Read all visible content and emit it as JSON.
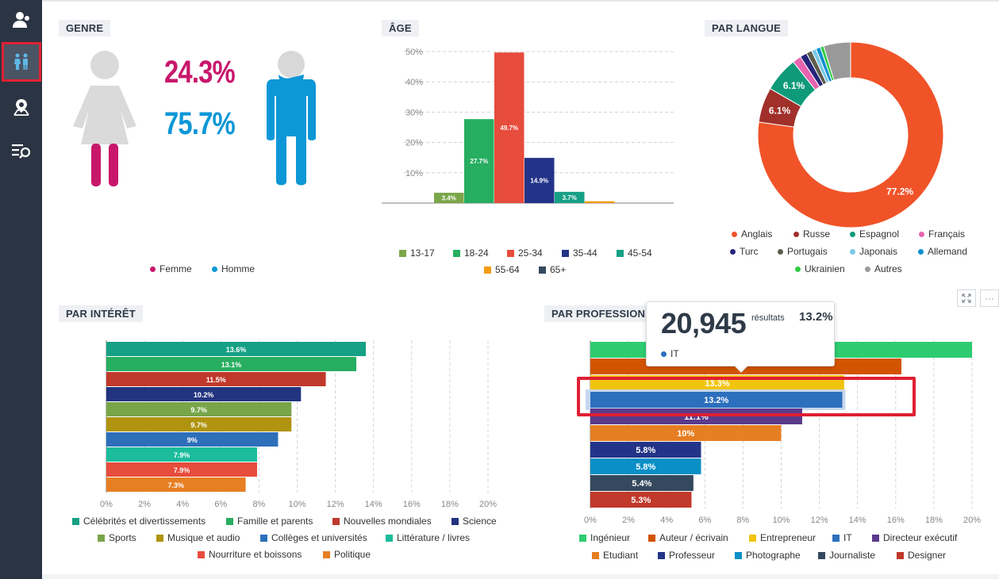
{
  "sidebar": {
    "items": [
      {
        "name": "audience-icon",
        "active": false
      },
      {
        "name": "gender-icon",
        "active": true
      },
      {
        "name": "location-icon",
        "active": false
      },
      {
        "name": "search-list-icon",
        "active": false
      }
    ]
  },
  "genre": {
    "title": "GENRE",
    "female_pct": "24.3%",
    "male_pct": "75.7%",
    "legend": [
      {
        "label": "Femme",
        "color": "#c8176b"
      },
      {
        "label": "Homme",
        "color": "#0d97d6"
      }
    ]
  },
  "age": {
    "title": "ÂGE",
    "legend": [
      {
        "label": "13-17",
        "color": "#7ba64a"
      },
      {
        "label": "18-24",
        "color": "#27ae60"
      },
      {
        "label": "25-34",
        "color": "#e74c3c"
      },
      {
        "label": "35-44",
        "color": "#233488"
      },
      {
        "label": "45-54",
        "color": "#16a085"
      },
      {
        "label": "55-64",
        "color": "#f39c12"
      },
      {
        "label": "65+",
        "color": "#34495e"
      }
    ]
  },
  "langue": {
    "title": "PAR LANGUE",
    "legend": [
      {
        "label": "Anglais",
        "color": "#f05328"
      },
      {
        "label": "Russe",
        "color": "#a1302a"
      },
      {
        "label": "Espagnol",
        "color": "#0f9a7a"
      },
      {
        "label": "Français",
        "color": "#e764ae"
      },
      {
        "label": "Turc",
        "color": "#26247a"
      },
      {
        "label": "Portugais",
        "color": "#5d5d4c"
      },
      {
        "label": "Japonais",
        "color": "#79c8e8"
      },
      {
        "label": "Allemand",
        "color": "#0c8fd1"
      },
      {
        "label": "Ukrainien",
        "color": "#2ecc40"
      },
      {
        "label": "Autres",
        "color": "#999999"
      }
    ]
  },
  "interet": {
    "title": "PAR INTÉRÊT",
    "legend": [
      {
        "label": "Célébrités et divertissements",
        "color": "#16a085"
      },
      {
        "label": "Famille et parents",
        "color": "#27ae60"
      },
      {
        "label": "Nouvelles mondiales",
        "color": "#c0392b"
      },
      {
        "label": "Science",
        "color": "#223480"
      },
      {
        "label": "Sports",
        "color": "#78a54a"
      },
      {
        "label": "Musique et audio",
        "color": "#b09310"
      },
      {
        "label": "Collèges et universités",
        "color": "#2e6fba"
      },
      {
        "label": "Littérature / livres",
        "color": "#1abc9c"
      },
      {
        "label": "Nourriture et boissons",
        "color": "#e74c3c"
      },
      {
        "label": "Politique",
        "color": "#e67e22"
      }
    ]
  },
  "profession": {
    "title": "PAR PROFESSIONS",
    "legend": [
      {
        "label": "Ingénieur",
        "color": "#2ecc71"
      },
      {
        "label": "Auteur / écrivain",
        "color": "#d35400"
      },
      {
        "label": "Entrepreneur",
        "color": "#f1c40f"
      },
      {
        "label": "IT",
        "color": "#2c6fbd"
      },
      {
        "label": "Directeur exécutif",
        "color": "#5b3a8c"
      },
      {
        "label": "Etudiant",
        "color": "#e67e22"
      },
      {
        "label": "Professeur",
        "color": "#233488"
      },
      {
        "label": "Photographe",
        "color": "#0a8fc6"
      },
      {
        "label": "Journaliste",
        "color": "#34495e"
      },
      {
        "label": "Designer",
        "color": "#c0392b"
      }
    ],
    "tooltip": {
      "count": "20,945",
      "count_label": "résultats",
      "pct": "13.2%",
      "series": "IT",
      "series_color": "#2c6fbd"
    },
    "tool_expand": "expand-icon",
    "tool_more": "···"
  },
  "chart_data": [
    {
      "type": "bar",
      "title": "ÂGE",
      "categories": [
        "13-17",
        "18-24",
        "25-34",
        "35-44",
        "45-54",
        "55-64",
        "65+"
      ],
      "values": [
        3.4,
        27.7,
        49.7,
        14.9,
        3.7,
        0.6,
        0
      ],
      "labels": [
        "3.4%",
        "27.7%",
        "49.7%",
        "14.9%",
        "3.7%",
        "",
        ""
      ],
      "colors": [
        "#7ba64a",
        "#27ae60",
        "#e74c3c",
        "#233488",
        "#16a085",
        "#f39c12",
        "#34495e"
      ],
      "yticks": [
        "10%",
        "20%",
        "30%",
        "40%",
        "50%"
      ],
      "ylim": [
        0,
        50
      ]
    },
    {
      "type": "pie",
      "title": "PAR LANGUE",
      "categories": [
        "Anglais",
        "Russe",
        "Espagnol",
        "Français",
        "Turc",
        "Portugais",
        "Japonais",
        "Allemand",
        "Ukrainien",
        "Autres"
      ],
      "values": [
        77.2,
        6.1,
        6.1,
        1.5,
        1.2,
        1.0,
        0.8,
        0.8,
        0.6,
        4.7
      ],
      "labels": [
        "77.2%",
        "6.1%",
        "6.1%",
        "",
        "",
        "",
        "",
        "",
        "",
        ""
      ],
      "colors": [
        "#f05328",
        "#a1302a",
        "#0f9a7a",
        "#e764ae",
        "#26247a",
        "#5d5d4c",
        "#79c8e8",
        "#0c8fd1",
        "#2ecc40",
        "#999999"
      ]
    },
    {
      "type": "bar",
      "orientation": "horizontal",
      "title": "PAR INTÉRÊT",
      "categories": [
        "Célébrités et divertissements",
        "Famille et parents",
        "Nouvelles mondiales",
        "Science",
        "Sports",
        "Musique et audio",
        "Collèges et universités",
        "Littérature / livres",
        "Nourriture et boissons",
        "Politique"
      ],
      "values": [
        13.6,
        13.1,
        11.5,
        10.2,
        9.7,
        9.7,
        9,
        7.9,
        7.9,
        7.3
      ],
      "labels": [
        "13.6%",
        "13.1%",
        "11.5%",
        "10.2%",
        "9.7%",
        "9.7%",
        "9%",
        "7.9%",
        "7.9%",
        "7.3%"
      ],
      "colors": [
        "#16a085",
        "#27ae60",
        "#c0392b",
        "#223480",
        "#78a54a",
        "#b09310",
        "#2e6fba",
        "#1abc9c",
        "#e74c3c",
        "#e67e22"
      ],
      "xticks": [
        "0%",
        "2%",
        "4%",
        "6%",
        "8%",
        "10%",
        "12%",
        "14%",
        "16%",
        "18%",
        "20%"
      ],
      "xlim": [
        0,
        20
      ]
    },
    {
      "type": "bar",
      "orientation": "horizontal",
      "title": "PAR PROFESSIONS",
      "categories": [
        "Ingénieur",
        "Auteur / écrivain",
        "Entrepreneur",
        "IT",
        "Directeur exécutif",
        "Etudiant",
        "Professeur",
        "Photographe",
        "Journaliste",
        "Designer"
      ],
      "values": [
        20,
        16.3,
        13.3,
        13.2,
        11.1,
        10,
        5.8,
        5.8,
        5.4,
        5.3
      ],
      "labels": [
        "",
        "",
        "13.3%",
        "13.2%",
        "11.1%",
        "10%",
        "5.8%",
        "5.8%",
        "5.4%",
        "5.3%"
      ],
      "colors": [
        "#2ecc71",
        "#d35400",
        "#f1c40f",
        "#2c6fbd",
        "#5b3a8c",
        "#e67e22",
        "#233488",
        "#0a8fc6",
        "#34495e",
        "#c0392b"
      ],
      "xticks": [
        "0%",
        "2%",
        "4%",
        "6%",
        "8%",
        "10%",
        "12%",
        "14%",
        "16%",
        "18%",
        "20%"
      ],
      "xlim": [
        0,
        20
      ],
      "highlighted": "IT"
    }
  ]
}
